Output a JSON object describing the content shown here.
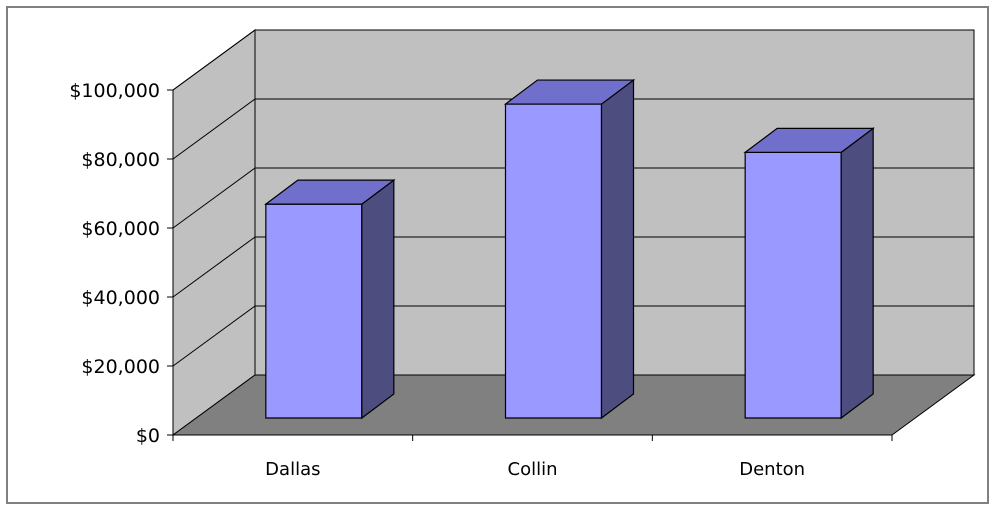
{
  "chart_data": {
    "type": "bar",
    "categories": [
      "Dallas",
      "Collin",
      "Denton"
    ],
    "values": [
      62000,
      91000,
      77000
    ],
    "ylim": [
      0,
      100000
    ],
    "yticks": [
      0,
      20000,
      40000,
      60000,
      80000,
      100000
    ],
    "ytick_labels": [
      "$0",
      "$20,000",
      "$40,000",
      "$60,000",
      "$80,000",
      "$100,000"
    ],
    "grid": true,
    "legend": "none",
    "style": "3d-column",
    "colors": {
      "bar_front": "#9999ff",
      "bar_top": "#7070cc",
      "bar_side": "#4d4d80",
      "back_wall": "#c0c0c0",
      "side_wall": "#c0c0c0",
      "floor": "#808080",
      "frame": "#808080"
    }
  }
}
